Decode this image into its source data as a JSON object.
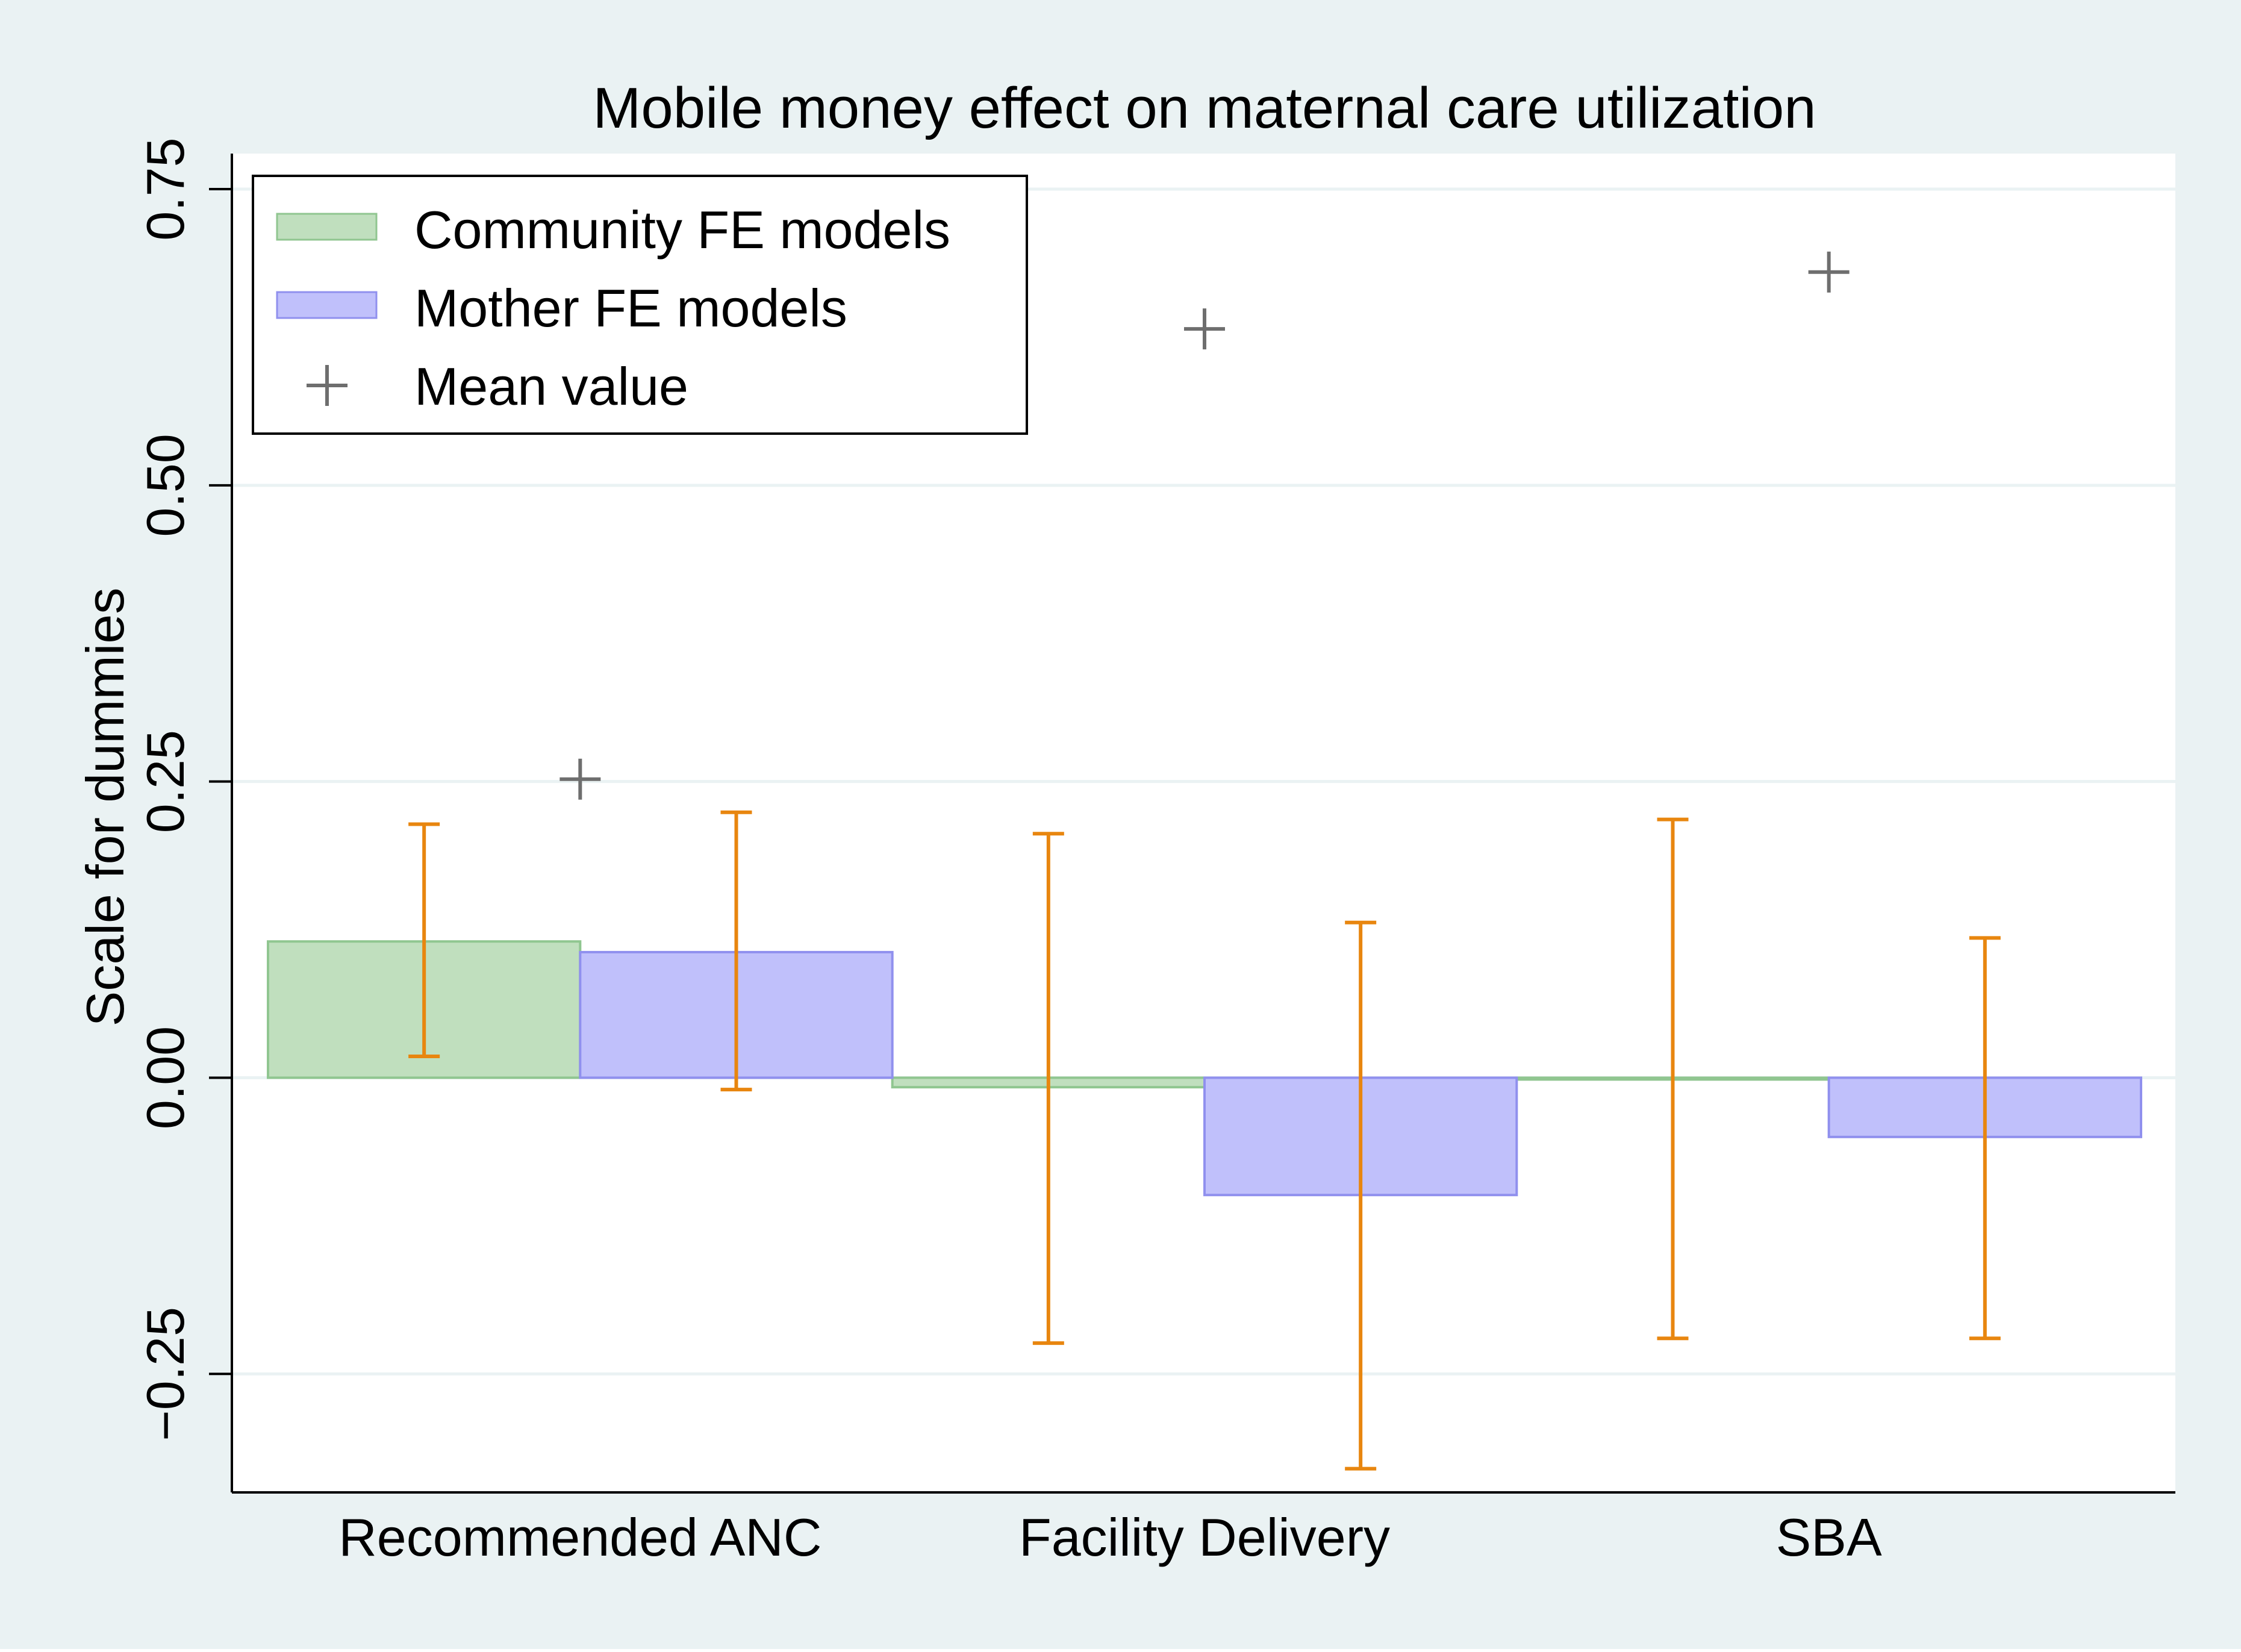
{
  "chart_data": {
    "type": "bar",
    "title": "Mobile money effect on maternal care utilization",
    "ylabel": "Scale for dummies",
    "xlabel": "",
    "ylim": [
      -0.35,
      0.78
    ],
    "yticks": [
      -0.25,
      0.0,
      0.25,
      0.5,
      0.75
    ],
    "ytick_labels": [
      "−0.25",
      "0.00",
      "0.25",
      "0.50",
      "0.75"
    ],
    "categories": [
      "Recommended ANC",
      "Facility Delivery",
      "SBA"
    ],
    "series": [
      {
        "name": "Community FE models",
        "values": [
          0.115,
          -0.008,
          -0.001
        ],
        "ci_low": [
          0.018,
          -0.224,
          -0.22
        ],
        "ci_high": [
          0.214,
          0.206,
          0.218
        ]
      },
      {
        "name": "Mother FE models",
        "values": [
          0.106,
          -0.099,
          -0.05
        ],
        "ci_low": [
          -0.01,
          -0.33,
          -0.22
        ],
        "ci_high": [
          0.224,
          0.131,
          0.118
        ]
      }
    ],
    "mean_values": {
      "name": "Mean value",
      "values": [
        0.252,
        0.632,
        0.68
      ]
    },
    "legend": {
      "placement": "top-left",
      "entries": [
        "Community FE models",
        "Mother FE models",
        "Mean value"
      ]
    },
    "grid": true,
    "colors": {
      "outer_background": "#eaf2f3",
      "plot_background": "#ffffff",
      "gridline": "#eaf2f3",
      "community_fill": "#c0dfbe",
      "community_stroke": "#90c690",
      "mother_fill": "#c0c0fb",
      "mother_stroke": "#9090ee",
      "error_bar": "#e8860f",
      "mean_marker": "#6e6e6e",
      "axis": "#000000"
    }
  }
}
